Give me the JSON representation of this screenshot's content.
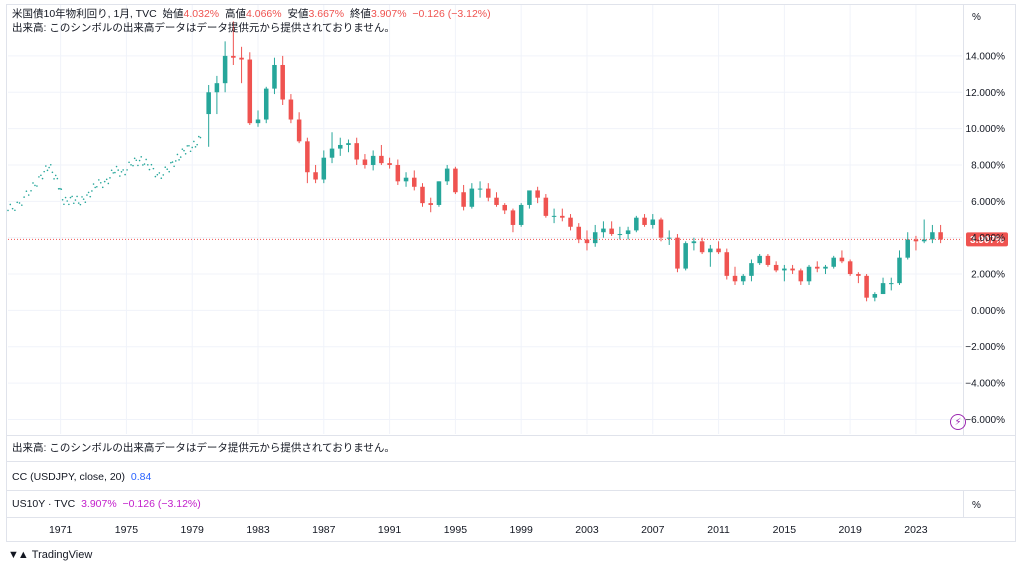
{
  "legend": {
    "symbol": "米国債10年物利回り, 1月, TVC",
    "open_label": "始値",
    "open_value": "4.032%",
    "high_label": "高値",
    "high_value": "4.066%",
    "low_label": "安値",
    "low_value": "3.667%",
    "close_label": "終値",
    "close_value": "3.907%",
    "change": "−0.126 (−3.12%)",
    "volume_note": "出来高: このシンボルの出来高データはデータ提供元から提供されておりません。"
  },
  "volume_pane": {
    "text": "出来高: このシンボルの出来高データはデータ提供元から提供されておりません。"
  },
  "cc_pane": {
    "label": "CC (USDJPY, close, 20)",
    "value": "0.84"
  },
  "us10y_pane": {
    "label": "US10Y · TVC",
    "value": "3.907%",
    "change": "−0.126 (−3.12%)"
  },
  "unit_symbol": "%",
  "last_price_label": "3.907%",
  "brand": {
    "name": "TradingView"
  },
  "colors": {
    "up": "#26a69a",
    "down": "#ef5350",
    "last_line": "#ef5350",
    "grid": "#f0f3fa",
    "dots": "#26a69a"
  },
  "chart_data": {
    "type": "candlestick",
    "title": "米国債10年物利回り, 1月, TVC",
    "y_unit": "%",
    "ylim": [
      -6.8,
      16.8
    ],
    "y_ticks": [
      "14.000%",
      "12.000%",
      "10.000%",
      "8.000%",
      "6.000%",
      "4.000%",
      "2.000%",
      "0.000%",
      "−2.000%",
      "−4.000%",
      "−6.000%"
    ],
    "y_tick_values": [
      14,
      12,
      10,
      8,
      6,
      4,
      2,
      0,
      -2,
      -4,
      -6
    ],
    "x_ticks": [
      "1971",
      "1975",
      "1979",
      "1983",
      "1987",
      "1991",
      "1995",
      "1999",
      "2003",
      "2007",
      "2011",
      "2015",
      "2019",
      "2023"
    ],
    "x_tick_values": [
      1971,
      1975,
      1979,
      1983,
      1987,
      1991,
      1995,
      1999,
      2003,
      2007,
      2011,
      2015,
      2019,
      2023
    ],
    "xlim": [
      1967.8,
      2025.8
    ],
    "last_value": 3.907,
    "grid": true,
    "dotted_series": {
      "name": "",
      "x": [
        1967.8,
        1968.5,
        1969.2,
        1969.8,
        1970.3,
        1970.8,
        1971.2,
        1971.7,
        1972.2,
        1972.7,
        1973.2,
        1973.8,
        1974.3,
        1974.8,
        1975.4,
        1975.9,
        1976.4,
        1977.0,
        1977.6,
        1978.1,
        1978.6,
        1979.1,
        1979.6
      ],
      "y": [
        5.5,
        5.9,
        6.6,
        7.4,
        7.9,
        7.2,
        5.9,
        6.2,
        5.9,
        6.4,
        6.9,
        7.1,
        7.7,
        7.6,
        8.1,
        8.3,
        7.9,
        7.4,
        7.8,
        8.4,
        8.8,
        9.1,
        9.5
      ]
    },
    "candles": {
      "x": [
        1980.0,
        1980.5,
        1981.0,
        1981.5,
        1982.0,
        1982.5,
        1983.0,
        1983.5,
        1984.0,
        1984.5,
        1985.0,
        1985.5,
        1986.0,
        1986.5,
        1987.0,
        1987.5,
        1988.0,
        1988.5,
        1989.0,
        1989.5,
        1990.0,
        1990.5,
        1991.0,
        1991.5,
        1992.0,
        1992.5,
        1993.0,
        1993.5,
        1994.0,
        1994.5,
        1995.0,
        1995.5,
        1996.0,
        1996.5,
        1997.0,
        1997.5,
        1998.0,
        1998.5,
        1999.0,
        1999.5,
        2000.0,
        2000.5,
        2001.0,
        2001.5,
        2002.0,
        2002.5,
        2003.0,
        2003.5,
        2004.0,
        2004.5,
        2005.0,
        2005.5,
        2006.0,
        2006.5,
        2007.0,
        2007.5,
        2008.0,
        2008.5,
        2009.0,
        2009.5,
        2010.0,
        2010.5,
        2011.0,
        2011.5,
        2012.0,
        2012.5,
        2013.0,
        2013.5,
        2014.0,
        2014.5,
        2015.0,
        2015.5,
        2016.0,
        2016.5,
        2017.0,
        2017.5,
        2018.0,
        2018.5,
        2019.0,
        2019.5,
        2020.0,
        2020.5,
        2021.0,
        2021.5,
        2022.0,
        2022.5,
        2023.0,
        2023.5,
        2024.0,
        2024.5
      ],
      "open": [
        10.8,
        12.0,
        12.5,
        14.0,
        13.9,
        13.8,
        10.3,
        10.5,
        12.2,
        13.5,
        11.6,
        10.5,
        9.3,
        7.6,
        7.2,
        8.4,
        8.9,
        9.1,
        9.2,
        8.3,
        8.0,
        8.5,
        8.1,
        8.0,
        7.1,
        7.3,
        6.8,
        5.9,
        5.8,
        7.1,
        7.8,
        6.5,
        5.7,
        6.7,
        6.7,
        6.2,
        5.8,
        5.5,
        4.7,
        5.8,
        6.6,
        6.2,
        5.2,
        5.2,
        5.1,
        4.6,
        3.9,
        3.7,
        4.3,
        4.5,
        4.2,
        4.2,
        4.4,
        5.1,
        4.7,
        5.0,
        4.0,
        4.0,
        2.3,
        3.7,
        3.8,
        3.2,
        3.4,
        3.2,
        1.9,
        1.6,
        1.9,
        2.6,
        3.0,
        2.5,
        2.2,
        2.3,
        2.2,
        1.6,
        2.4,
        2.3,
        2.4,
        2.9,
        2.7,
        2.0,
        1.9,
        0.7,
        0.9,
        1.5,
        1.5,
        2.9,
        3.9,
        3.8,
        3.9,
        4.3
      ],
      "high": [
        12.4,
        12.9,
        14.8,
        15.9,
        14.5,
        14.2,
        11.0,
        12.3,
        13.9,
        14.0,
        11.9,
        10.9,
        9.5,
        8.0,
        8.8,
        9.8,
        9.5,
        9.4,
        9.5,
        8.6,
        8.8,
        9.1,
        8.4,
        8.3,
        7.6,
        7.7,
        7.0,
        6.2,
        7.1,
        8.0,
        7.9,
        6.9,
        7.0,
        7.1,
        7.0,
        6.5,
        5.9,
        5.6,
        5.9,
        6.4,
        6.8,
        6.4,
        5.6,
        5.6,
        5.3,
        4.8,
        4.4,
        4.7,
        4.9,
        4.9,
        4.6,
        4.6,
        5.2,
        5.3,
        5.3,
        5.1,
        4.4,
        4.2,
        3.8,
        4.0,
        4.0,
        3.6,
        3.8,
        3.4,
        2.4,
        2.0,
        2.8,
        3.1,
        3.1,
        2.7,
        2.5,
        2.5,
        2.3,
        2.5,
        2.7,
        2.5,
        3.0,
        3.3,
        2.8,
        2.1,
        2.0,
        1.0,
        1.8,
        1.8,
        3.3,
        4.3,
        4.1,
        5.0,
        4.7,
        4.7
      ],
      "low": [
        9.0,
        10.8,
        12.0,
        13.5,
        12.5,
        10.2,
        10.1,
        10.3,
        11.9,
        11.3,
        10.3,
        9.2,
        7.0,
        7.0,
        7.0,
        8.1,
        8.5,
        8.7,
        8.0,
        7.8,
        7.7,
        8.0,
        7.8,
        6.9,
        6.8,
        6.6,
        5.7,
        5.4,
        5.7,
        6.9,
        6.4,
        5.5,
        5.6,
        6.2,
        6.0,
        5.7,
        5.3,
        4.3,
        4.6,
        5.6,
        5.9,
        5.1,
        4.8,
        4.9,
        4.4,
        3.7,
        3.3,
        3.5,
        4.0,
        4.1,
        3.9,
        3.9,
        4.3,
        4.6,
        4.5,
        3.8,
        3.6,
        2.1,
        2.2,
        3.3,
        3.1,
        2.4,
        3.1,
        1.7,
        1.4,
        1.4,
        1.6,
        2.5,
        2.4,
        2.1,
        1.6,
        2.0,
        1.4,
        1.4,
        2.1,
        2.0,
        2.3,
        2.6,
        1.9,
        1.5,
        0.5,
        0.5,
        0.9,
        1.1,
        1.4,
        2.8,
        3.3,
        3.7,
        3.7,
        3.7
      ],
      "close": [
        12.0,
        12.5,
        14.0,
        13.9,
        13.8,
        10.3,
        10.5,
        12.2,
        13.5,
        11.6,
        10.5,
        9.3,
        7.6,
        7.2,
        8.4,
        8.9,
        9.1,
        9.2,
        8.3,
        8.0,
        8.5,
        8.1,
        8.0,
        7.1,
        7.3,
        6.8,
        5.9,
        5.8,
        7.1,
        7.8,
        6.5,
        5.7,
        6.7,
        6.7,
        6.2,
        5.8,
        5.5,
        4.7,
        5.8,
        6.6,
        6.2,
        5.2,
        5.2,
        5.1,
        4.6,
        3.9,
        3.7,
        4.3,
        4.5,
        4.2,
        4.2,
        4.4,
        5.1,
        4.7,
        5.0,
        4.0,
        4.0,
        2.3,
        3.7,
        3.8,
        3.2,
        3.4,
        3.2,
        1.9,
        1.6,
        1.9,
        2.6,
        3.0,
        2.5,
        2.2,
        2.3,
        2.2,
        1.6,
        2.4,
        2.3,
        2.4,
        2.9,
        2.7,
        2.0,
        1.9,
        0.7,
        0.9,
        1.5,
        1.5,
        2.9,
        3.9,
        3.8,
        3.9,
        4.3,
        3.9
      ]
    }
  }
}
